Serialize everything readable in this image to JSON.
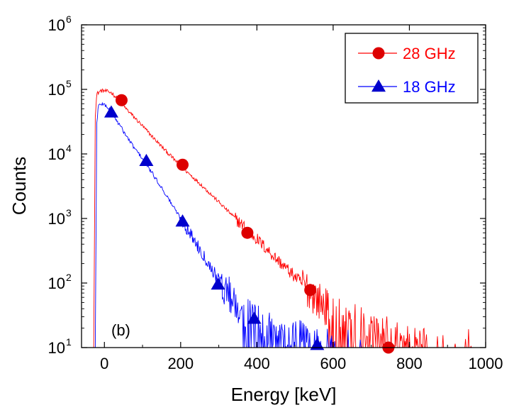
{
  "chart_data": {
    "type": "line",
    "title": "",
    "xlabel": "Energy [keV]",
    "ylabel": "Counts",
    "panel_label": "(b)",
    "xlim": [
      -60,
      1000
    ],
    "ylim": [
      10,
      1000000
    ],
    "y_scale": "log",
    "grid": false,
    "legend_position": "top-right",
    "x_ticks": [
      {
        "value": 0,
        "label": "0"
      },
      {
        "value": 200,
        "label": "200"
      },
      {
        "value": 400,
        "label": "400"
      },
      {
        "value": 600,
        "label": "600"
      },
      {
        "value": 800,
        "label": "800"
      },
      {
        "value": 1000,
        "label": "1000"
      }
    ],
    "y_ticks": [
      {
        "value": 10,
        "base": "10",
        "exp": "1"
      },
      {
        "value": 100,
        "base": "10",
        "exp": "2"
      },
      {
        "value": 1000,
        "base": "10",
        "exp": "3"
      },
      {
        "value": 10000,
        "base": "10",
        "exp": "4"
      },
      {
        "value": 100000,
        "base": "10",
        "exp": "5"
      },
      {
        "value": 1000000,
        "base": "10",
        "exp": "6"
      }
    ],
    "series": [
      {
        "name": "28 GHz",
        "color": "#ff0000",
        "marker_color": "#dd0000",
        "marker": "circle",
        "x": [
          -28,
          -24,
          -20,
          -10,
          0,
          10,
          20,
          40,
          60,
          80,
          100,
          150,
          200,
          250,
          300,
          350,
          400,
          450,
          500,
          540,
          560,
          600,
          650,
          700,
          750,
          800,
          850
        ],
        "y": [
          10,
          40000,
          85000,
          95000,
          95000,
          92000,
          88000,
          65000,
          48000,
          36000,
          27000,
          13000,
          6500,
          3500,
          1800,
          920,
          480,
          240,
          125,
          75,
          55,
          34,
          25,
          18,
          15,
          12,
          11
        ],
        "markers": [
          {
            "x": 45,
            "y": 68000
          },
          {
            "x": 205,
            "y": 6800
          },
          {
            "x": 375,
            "y": 600
          },
          {
            "x": 540,
            "y": 78
          },
          {
            "x": 745,
            "y": 10
          }
        ]
      },
      {
        "name": "18 GHz",
        "color": "#0000ff",
        "marker_color": "#0000cc",
        "marker": "triangle",
        "x": [
          -24,
          -20,
          -16,
          -8,
          0,
          10,
          20,
          40,
          60,
          80,
          100,
          150,
          200,
          250,
          300,
          350,
          400,
          450,
          500,
          550,
          600
        ],
        "y": [
          10,
          30000,
          55000,
          60000,
          58000,
          52000,
          42000,
          28000,
          18000,
          12000,
          8500,
          3000,
          1000,
          340,
          110,
          45,
          25,
          18,
          14,
          12,
          11
        ],
        "markers": [
          {
            "x": 18,
            "y": 44000
          },
          {
            "x": 110,
            "y": 7800
          },
          {
            "x": 205,
            "y": 900
          },
          {
            "x": 298,
            "y": 95
          },
          {
            "x": 393,
            "y": 28
          },
          {
            "x": 558,
            "y": 11
          }
        ]
      }
    ]
  }
}
